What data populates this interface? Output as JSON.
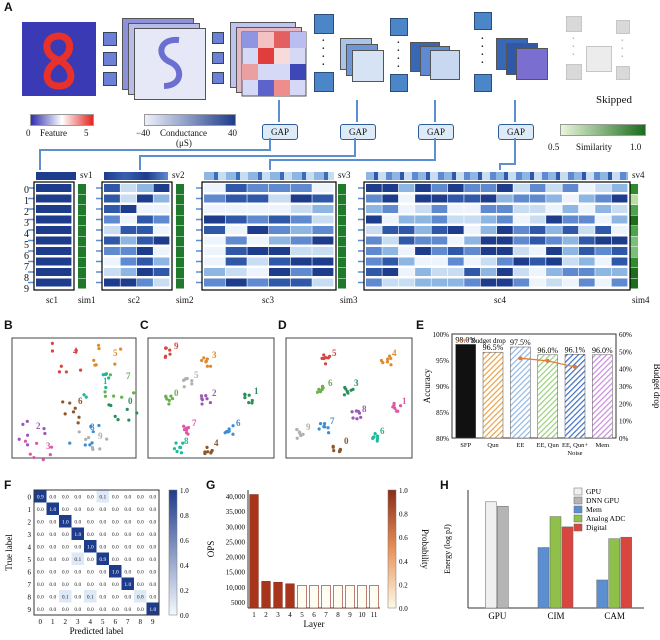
{
  "panels": {
    "A": "A",
    "B": "B",
    "C": "C",
    "D": "D",
    "E": "E",
    "F": "F",
    "G": "G",
    "H": "H"
  },
  "panel_a": {
    "feature_min": "0",
    "feature_label": "Feature",
    "feature_max": "5",
    "cond_min": "−40",
    "cond_label": "Conductance",
    "cond_unit": "(μS)",
    "cond_max": "40",
    "sim_min": "0.5",
    "sim_label": "Similarity",
    "sim_max": "1.0",
    "gap": "GAP",
    "skipped": "Skipped",
    "sv": [
      "sv1",
      "sv2",
      "sv3",
      "sv4"
    ],
    "sc": [
      "sc1",
      "sc2",
      "sc3",
      "sc4"
    ],
    "sim": [
      "sim1",
      "sim2",
      "sim3",
      "sim4"
    ],
    "rows": [
      "0",
      "1",
      "2",
      "3",
      "4",
      "5",
      "6",
      "7",
      "8",
      "9"
    ]
  },
  "panel_b": {
    "digits": [
      "4",
      "5",
      "7",
      "0",
      "2",
      "3",
      "8",
      "6",
      "9",
      "1"
    ]
  },
  "panel_c": {
    "digits": [
      "9",
      "3",
      "0",
      "1",
      "2",
      "7",
      "6",
      "4",
      "5",
      "8"
    ]
  },
  "panel_d": {
    "digits": [
      "5",
      "4",
      "6",
      "3",
      "8",
      "1",
      "7",
      "0",
      "9",
      "6"
    ]
  },
  "chart_data": [
    {
      "type": "bar",
      "panel": "E",
      "categories": [
        "SFP",
        "Qun",
        "EE",
        "EE, Qun",
        "EE, Qun+\nNoise",
        "Mem"
      ],
      "values": [
        98.0,
        96.5,
        97.5,
        96.0,
        96.1,
        96.0
      ],
      "value_labels": [
        "98.0%",
        "96.5%",
        "97.5%",
        "96.0%",
        "96.1%",
        "96.0%"
      ],
      "ylabel": "Accuracy",
      "ylabel_right": "Budget drop",
      "legend": "Budget drop",
      "ylim": [
        80,
        100
      ],
      "yticks": [
        "80%",
        "85%",
        "90%",
        "95%",
        "100%"
      ],
      "y2ticks": [
        "0%",
        "10%",
        "20%",
        "30%",
        "40%",
        "50%",
        "60%"
      ],
      "budget_drop": [
        46,
        44.5,
        41
      ]
    },
    {
      "type": "heatmap",
      "panel": "F",
      "xlabel": "Predicted label",
      "ylabel": "True label",
      "labels": [
        "0",
        "1",
        "2",
        "3",
        "4",
        "5",
        "6",
        "7",
        "8",
        "9"
      ],
      "colorbar": [
        "1.0",
        "0.8",
        "0.6",
        "0.4",
        "0.2",
        "0.0"
      ],
      "matrix": [
        [
          "0.9",
          "0.0",
          "0.0",
          "0.0",
          "0.0",
          "0.1",
          "0.0",
          "0.0",
          "0.0",
          "0.0"
        ],
        [
          "0.0",
          "1.0",
          "0.0",
          "0.0",
          "0.0",
          "0.0",
          "0.0",
          "0.0",
          "0.0",
          "0.0"
        ],
        [
          "0.0",
          "0.0",
          "1.0",
          "0.0",
          "0.0",
          "0.0",
          "0.0",
          "0.0",
          "0.0",
          "0.0"
        ],
        [
          "0.0",
          "0.0",
          "0.0",
          "1.0",
          "0.0",
          "0.0",
          "0.0",
          "0.0",
          "0.0",
          "0.0"
        ],
        [
          "0.0",
          "0.0",
          "0.0",
          "0.0",
          "1.0",
          "0.0",
          "0.0",
          "0.0",
          "0.0",
          "0.0"
        ],
        [
          "0.0",
          "0.0",
          "0.0",
          "0.1",
          "0.0",
          "0.9",
          "0.0",
          "0.0",
          "0.0",
          "0.0"
        ],
        [
          "0.0",
          "0.0",
          "0.0",
          "0.0",
          "0.0",
          "0.0",
          "1.0",
          "0.0",
          "0.0",
          "0.0"
        ],
        [
          "0.0",
          "0.0",
          "0.0",
          "0.0",
          "0.0",
          "0.0",
          "0.0",
          "1.0",
          "0.0",
          "0.0"
        ],
        [
          "0.0",
          "0.0",
          "0.1",
          "0.0",
          "0.1",
          "0.0",
          "0.0",
          "0.0",
          "0.8",
          "0.0"
        ],
        [
          "0.0",
          "0.0",
          "0.0",
          "0.0",
          "0.0",
          "0.0",
          "0.0",
          "0.0",
          "0.0",
          "1.0"
        ]
      ]
    },
    {
      "type": "bar",
      "panel": "G",
      "categories": [
        "1",
        "2",
        "3",
        "4",
        "5",
        "6",
        "7",
        "8",
        "9",
        "10",
        "11"
      ],
      "values": [
        40500,
        11800,
        11500,
        11000,
        10500,
        10500,
        10500,
        10500,
        10500,
        10500,
        10500
      ],
      "executed": [
        true,
        true,
        true,
        true,
        false,
        false,
        false,
        false,
        false,
        false,
        false
      ],
      "xlabel": "Layer",
      "ylabel": "OPS",
      "ylabel_right": "Probability",
      "yticks": [
        "5000",
        "10,000",
        "15,000",
        "20,000",
        "25,000",
        "30,000",
        "35,000",
        "40,000"
      ],
      "colorbar": [
        "1.0",
        "0.8",
        "0.6",
        "0.4",
        "0.2",
        "0.0"
      ]
    },
    {
      "type": "bar",
      "panel": "H",
      "categories": [
        "GPU",
        "CIM",
        "CAM"
      ],
      "series": [
        {
          "name": "GPU",
          "color": "#f0f0f0",
          "values": [
            7.2,
            null,
            null
          ]
        },
        {
          "name": "DNN GPU",
          "color": "#b5b5b5",
          "values": [
            6.9,
            null,
            null
          ]
        },
        {
          "name": "Mem",
          "color": "#5b8fd1",
          "values": [
            null,
            4.1,
            1.9
          ]
        },
        {
          "name": "Analog ADC",
          "color": "#8fc14a",
          "values": [
            null,
            6.2,
            4.7
          ]
        },
        {
          "name": "Digital",
          "color": "#d9453f",
          "values": [
            null,
            5.5,
            4.8
          ]
        }
      ],
      "ylabel": "Energy (log pJ)",
      "ylim": [
        0,
        8
      ]
    }
  ]
}
